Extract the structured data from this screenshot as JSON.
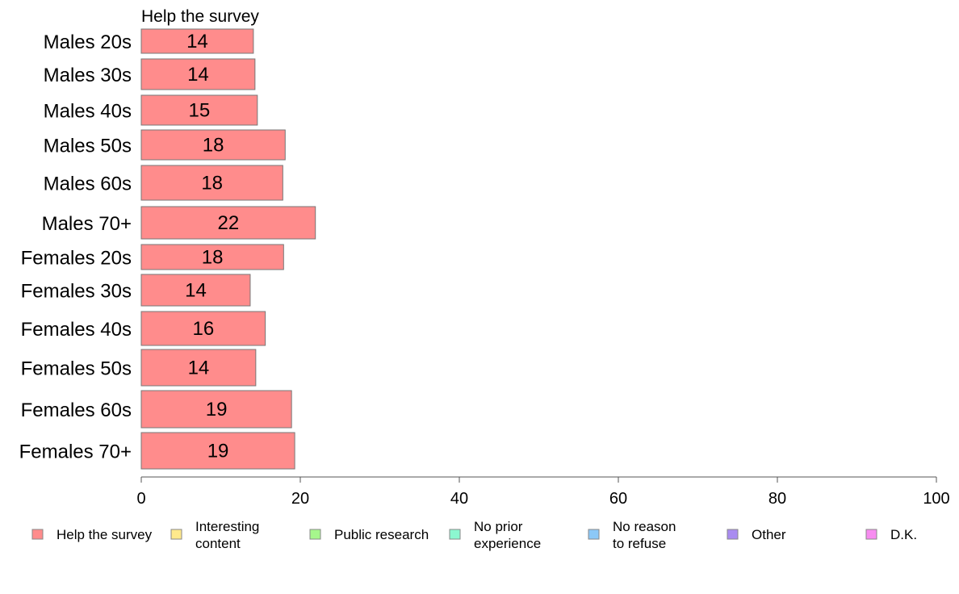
{
  "chart_data": {
    "type": "bar",
    "orientation": "horizontal",
    "title": "Help the survey",
    "categories": [
      "Males 20s",
      "Males 30s",
      "Males 40s",
      "Males 50s",
      "Males 60s",
      "Males 70+",
      "Females 20s",
      "Females 30s",
      "Females 40s",
      "Females 50s",
      "Females 60s",
      "Females 70+"
    ],
    "series": [
      {
        "name": "Help the survey",
        "color": "#ff8c8c",
        "values": [
          14.1,
          14.3,
          14.6,
          18.1,
          17.8,
          21.9,
          17.9,
          13.7,
          15.6,
          14.4,
          18.9,
          19.3
        ],
        "labels": [
          "14",
          "14",
          "15",
          "18",
          "18",
          "22",
          "18",
          "14",
          "16",
          "14",
          "19",
          "19"
        ]
      }
    ],
    "xlim": [
      0,
      100
    ],
    "xticks": [
      "0",
      "20",
      "40",
      "60",
      "80",
      "100"
    ],
    "grid": false,
    "legend": {
      "placement": "bottom",
      "items": [
        {
          "label": [
            "Help the survey"
          ],
          "color": "#ff8c8c"
        },
        {
          "label": [
            "Interesting",
            "content"
          ],
          "color": "#ffe98c"
        },
        {
          "label": [
            "Public research"
          ],
          "color": "#a6f78c"
        },
        {
          "label": [
            "No prior",
            "experience"
          ],
          "color": "#8cf7d0"
        },
        {
          "label": [
            "No reason",
            "to refuse"
          ],
          "color": "#8cc8f7"
        },
        {
          "label": [
            "Other"
          ],
          "color": "#a98cf0"
        },
        {
          "label": [
            "D.K."
          ],
          "color": "#f78cf0"
        }
      ]
    }
  }
}
